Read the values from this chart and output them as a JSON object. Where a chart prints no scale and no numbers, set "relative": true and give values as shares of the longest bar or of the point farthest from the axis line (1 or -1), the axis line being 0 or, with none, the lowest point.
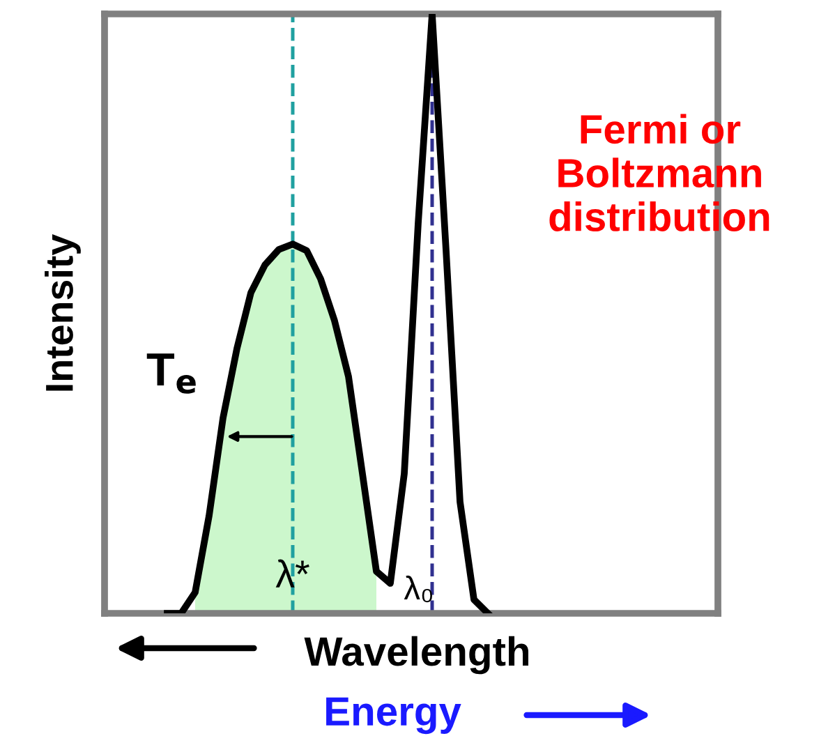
{
  "chart_data": {
    "type": "line",
    "relative": true,
    "ylabel": "Intensity",
    "xlabel": "Wavelength",
    "categories": [
      null,
      null,
      null,
      null,
      null,
      null,
      null,
      null,
      null,
      null,
      null,
      null,
      null,
      null,
      null,
      null,
      null,
      null,
      null,
      null,
      null,
      null,
      null,
      null
    ],
    "series": [
      {
        "type": "area",
        "color": "#ccf7cc",
        "values": [
          null,
          null,
          0.035,
          0.163,
          0.326,
          0.442,
          0.535,
          0.581,
          0.607,
          0.616,
          0.605,
          0.558,
          0.488,
          0.395,
          0.233,
          0.07,
          null,
          null,
          null,
          null,
          null,
          null,
          null,
          null
        ]
      },
      {
        "color": "#000000",
        "values": [
          0,
          0,
          0.035,
          0.163,
          0.326,
          0.442,
          0.535,
          0.581,
          0.607,
          0.616,
          0.605,
          0.558,
          0.488,
          0.395,
          0.233,
          0.07,
          0.05,
          0.233,
          0.651,
          1.0,
          0.605,
          0.186,
          0.023,
          0
        ]
      }
    ],
    "annotations": [
      "Fermi or Boltzmann distribution",
      "T$_{e}$",
      "Energy",
      "λ*",
      "λ₀"
    ],
    "legend": false,
    "line_style": "solid",
    "marker": "none"
  }
}
